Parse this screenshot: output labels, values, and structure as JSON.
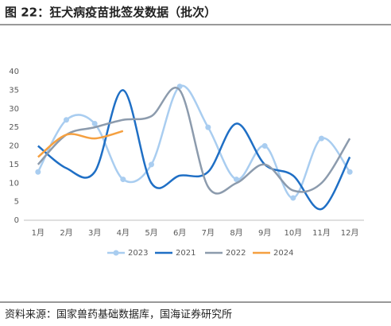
{
  "chart_data": {
    "type": "line",
    "title": "图 22：狂犬病疫苗批签发数据（批次）",
    "source": "资料来源：国家兽药基础数据库，国海证券研究所",
    "categories": [
      "1月",
      "2月",
      "3月",
      "4月",
      "5月",
      "6月",
      "7月",
      "8月",
      "9月",
      "10月",
      "11月",
      "12月"
    ],
    "series": [
      {
        "name": "2023",
        "color": "#a9cdf0",
        "marker": true,
        "values": [
          13,
          27,
          26,
          11,
          15,
          36,
          25,
          11,
          20,
          6,
          22,
          13
        ]
      },
      {
        "name": "2021",
        "color": "#1f6fc5",
        "marker": false,
        "values": [
          20,
          14,
          13,
          35,
          10,
          12,
          13,
          26,
          15,
          12,
          3,
          17
        ]
      },
      {
        "name": "2022",
        "color": "#8c9bad",
        "marker": false,
        "values": [
          15,
          23,
          25,
          27,
          28,
          35,
          9,
          10,
          15,
          8,
          10,
          22
        ]
      },
      {
        "name": "2024",
        "color": "#f5a040",
        "marker": false,
        "values": [
          17,
          23,
          22,
          24,
          null,
          null,
          null,
          null,
          null,
          null,
          null,
          null
        ]
      }
    ],
    "ylim": [
      0,
      40
    ],
    "yticks": [
      0,
      5,
      10,
      15,
      20,
      25,
      30,
      35,
      40
    ],
    "grid": false,
    "legend": "bottom",
    "smooth": true
  }
}
